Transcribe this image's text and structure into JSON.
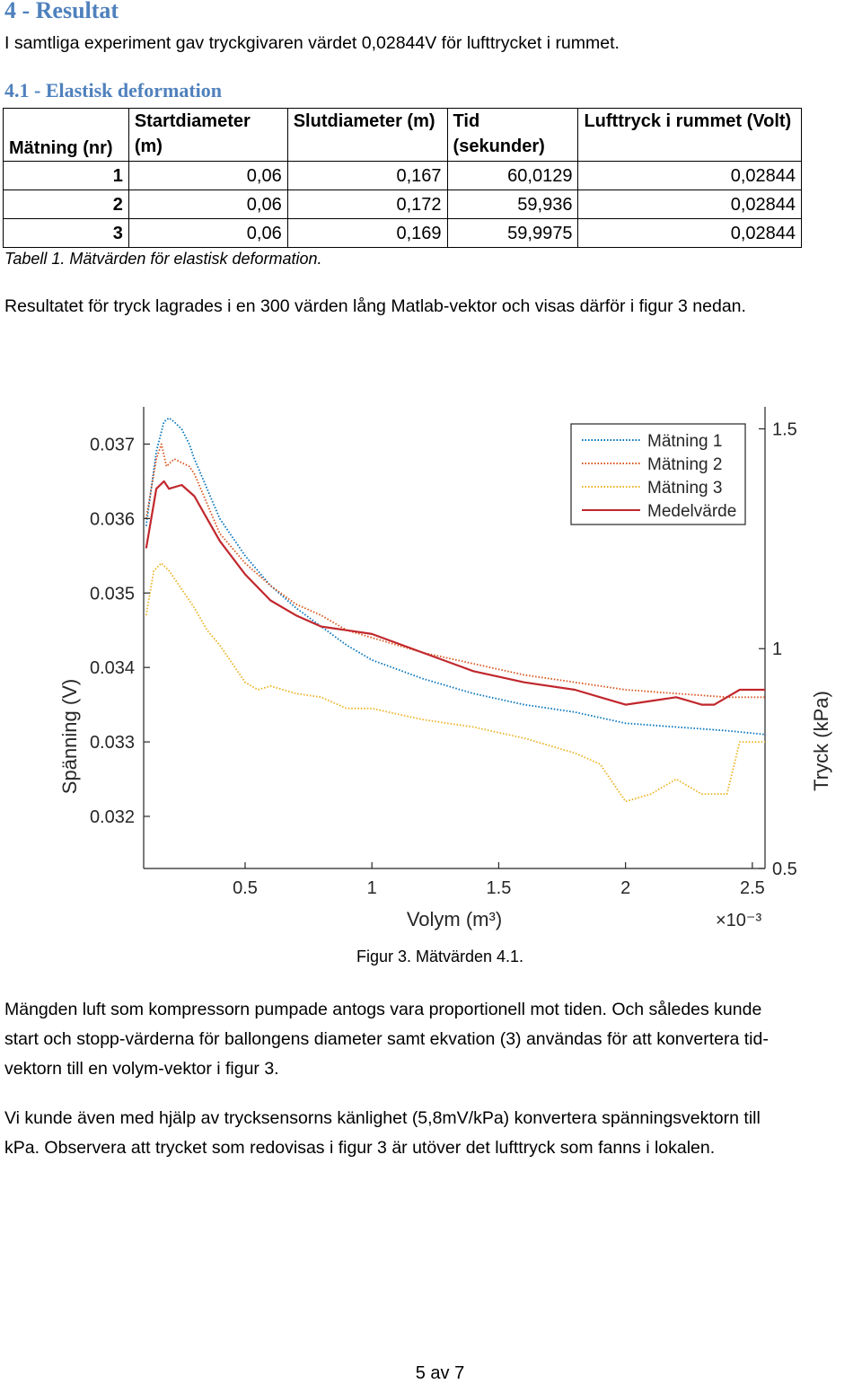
{
  "heading": "4 - Resultat",
  "intro": "I samtliga experiment gav tryckgivaren värdet 0,02844V för lufttrycket i rummet.",
  "subheading": "4.1 - Elastisk deformation",
  "table": {
    "headers": [
      "Mätning (nr)",
      "Startdiameter (m)",
      "Slutdiameter (m)",
      "Tid (sekunder)",
      "Lufttryck i rummet (Volt)"
    ],
    "rows": [
      [
        "1",
        "0,06",
        "0,167",
        "60,0129",
        "0,02844"
      ],
      [
        "2",
        "0,06",
        "0,172",
        "59,936",
        "0,02844"
      ],
      [
        "3",
        "0,06",
        "0,169",
        "59,9975",
        "0,02844"
      ]
    ],
    "caption": "Tabell 1. Mätvärden för elastisk deformation."
  },
  "para_before_figure": "Resultatet för tryck lagrades i en 300 värden lång Matlab-vektor och visas därför i figur 3 nedan.",
  "chart_data": {
    "type": "line",
    "xlabel": "Volym (m³)",
    "x_multiplier": "×10⁻³",
    "ylabel_left": "Spänning (V)",
    "ylabel_right": "Tryck (kPa)",
    "xlim": [
      0.1,
      2.55
    ],
    "ylim_left": [
      0.0313,
      0.0375
    ],
    "ylim_right": [
      0.5,
      1.55
    ],
    "x_ticks": [
      "0.5",
      "1",
      "1.5",
      "2",
      "2.5"
    ],
    "y_ticks_left": [
      "0.032",
      "0.033",
      "0.034",
      "0.035",
      "0.036",
      "0.037"
    ],
    "y_ticks_right": [
      "0.5",
      "1",
      "1.5"
    ],
    "legend_position": "top-right",
    "grid": false,
    "series": [
      {
        "name": "Mätning 1",
        "color": "#0072bd",
        "style": "dotted",
        "x": [
          0.11,
          0.15,
          0.18,
          0.2,
          0.22,
          0.25,
          0.28,
          0.3,
          0.35,
          0.4,
          0.5,
          0.6,
          0.7,
          0.8,
          0.9,
          1.0,
          1.2,
          1.4,
          1.6,
          1.8,
          2.0,
          2.2,
          2.4,
          2.55
        ],
        "y": [
          0.0359,
          0.0369,
          0.0373,
          0.03735,
          0.0373,
          0.0372,
          0.037,
          0.0368,
          0.0364,
          0.036,
          0.0355,
          0.0351,
          0.0348,
          0.03455,
          0.0343,
          0.0341,
          0.03385,
          0.03365,
          0.0335,
          0.0334,
          0.03325,
          0.0332,
          0.03315,
          0.0331
        ]
      },
      {
        "name": "Mätning 2",
        "color": "#d95319",
        "style": "dotted",
        "x": [
          0.11,
          0.15,
          0.17,
          0.19,
          0.22,
          0.25,
          0.28,
          0.3,
          0.35,
          0.4,
          0.5,
          0.6,
          0.7,
          0.8,
          0.9,
          1.0,
          1.2,
          1.4,
          1.6,
          1.8,
          2.0,
          2.2,
          2.4,
          2.55
        ],
        "y": [
          0.036,
          0.0368,
          0.037,
          0.0367,
          0.0368,
          0.03675,
          0.0367,
          0.0366,
          0.0362,
          0.0358,
          0.0354,
          0.0351,
          0.03485,
          0.0347,
          0.0345,
          0.0344,
          0.0342,
          0.03405,
          0.0339,
          0.0338,
          0.0337,
          0.03365,
          0.0336,
          0.0336
        ]
      },
      {
        "name": "Mätning 3",
        "color": "#edb120",
        "style": "dotted",
        "x": [
          0.11,
          0.14,
          0.17,
          0.2,
          0.25,
          0.3,
          0.35,
          0.4,
          0.45,
          0.5,
          0.55,
          0.6,
          0.65,
          0.7,
          0.8,
          0.9,
          1.0,
          1.2,
          1.4,
          1.6,
          1.8,
          1.9,
          2.0,
          2.1,
          2.2,
          2.3,
          2.4,
          2.45,
          2.5,
          2.55
        ],
        "y": [
          0.0347,
          0.0353,
          0.0354,
          0.0353,
          0.03505,
          0.0348,
          0.0345,
          0.0343,
          0.03405,
          0.0338,
          0.0337,
          0.03375,
          0.0337,
          0.03365,
          0.0336,
          0.03345,
          0.03345,
          0.0333,
          0.0332,
          0.03305,
          0.03285,
          0.0327,
          0.0322,
          0.0323,
          0.0325,
          0.0323,
          0.0323,
          0.033,
          0.033,
          0.033
        ]
      },
      {
        "name": "Medelvärde",
        "color": "#c1272d",
        "style": "solid",
        "x": [
          0.11,
          0.15,
          0.18,
          0.2,
          0.25,
          0.3,
          0.35,
          0.4,
          0.5,
          0.6,
          0.7,
          0.8,
          0.9,
          1.0,
          1.2,
          1.4,
          1.6,
          1.8,
          1.9,
          2.0,
          2.1,
          2.2,
          2.3,
          2.35,
          2.4,
          2.45,
          2.55
        ],
        "y": [
          0.0356,
          0.0364,
          0.0365,
          0.0364,
          0.03645,
          0.0363,
          0.036,
          0.0357,
          0.03525,
          0.0349,
          0.0347,
          0.03455,
          0.0345,
          0.03445,
          0.0342,
          0.03395,
          0.0338,
          0.0337,
          0.0336,
          0.0335,
          0.03355,
          0.0336,
          0.0335,
          0.0335,
          0.0336,
          0.0337,
          0.0337
        ]
      }
    ]
  },
  "figure_caption": "Figur 3. Mätvärden 4.1.",
  "para2_lines": [
    "Mängden luft som kompressorn pumpade antogs vara proportionell mot tiden. Och således kunde",
    "start och stopp-värderna för ballongens diameter samt ekvation (3) användas för att konvertera tid-",
    "vektorn till en volym-vektor i figur 3."
  ],
  "para3_lines": [
    "Vi kunde även med hjälp av trycksensorns känlighet (5,8mV/kPa) konvertera spänningsvektorn till",
    "kPa. Observera att trycket som redovisas i figur 3 är utöver det lufttryck som fanns i lokalen."
  ],
  "page_number": "5 av 7"
}
